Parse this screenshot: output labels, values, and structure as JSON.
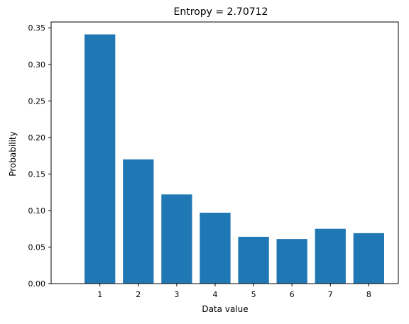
{
  "chart_data": {
    "type": "bar",
    "title": "Entropy = 2.70712",
    "xlabel": "Data value",
    "ylabel": "Probability",
    "categories": [
      "1",
      "2",
      "3",
      "4",
      "5",
      "6",
      "7",
      "8"
    ],
    "values": [
      0.341,
      0.17,
      0.122,
      0.097,
      0.064,
      0.061,
      0.075,
      0.069
    ],
    "ylim": [
      0,
      0.358
    ],
    "yticks": [
      "0.00",
      "0.05",
      "0.10",
      "0.15",
      "0.20",
      "0.25",
      "0.30",
      "0.35"
    ],
    "ytick_values": [
      0,
      0.05,
      0.1,
      0.15,
      0.2,
      0.25,
      0.3,
      0.35
    ],
    "grid": false,
    "legend": "none",
    "bar_color": "#1f77b4"
  }
}
